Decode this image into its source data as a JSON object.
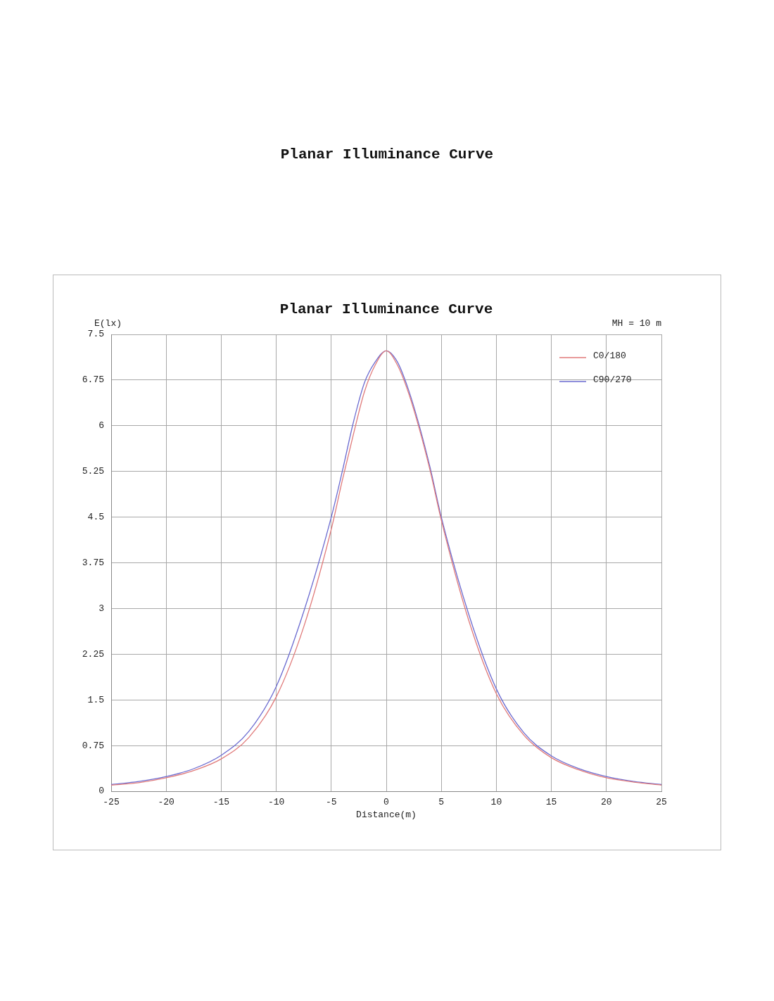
{
  "chart_data": {
    "type": "line",
    "title": "Planar Illuminance Curve",
    "xlabel": "Distance(m)",
    "ylabel": "E(lx)",
    "annotations": [
      "MH = 10 m"
    ],
    "x": [
      -25,
      -22.5,
      -20,
      -17.5,
      -15,
      -12.5,
      -10,
      -7.5,
      -5,
      -4,
      -3,
      -2,
      -1,
      0,
      1,
      2,
      3,
      4,
      5,
      7.5,
      10,
      12.5,
      15,
      17.5,
      20,
      22.5,
      25
    ],
    "series": [
      {
        "name": "C0/180",
        "color": "#e07a7a",
        "values": [
          0.1,
          0.14,
          0.22,
          0.34,
          0.53,
          0.88,
          1.55,
          2.7,
          4.3,
          5.1,
          5.85,
          6.55,
          7.0,
          7.23,
          7.0,
          6.55,
          5.95,
          5.25,
          4.45,
          2.8,
          1.6,
          0.92,
          0.55,
          0.35,
          0.22,
          0.15,
          0.1
        ]
      },
      {
        "name": "C90/270",
        "color": "#6b6bd0",
        "values": [
          0.11,
          0.16,
          0.24,
          0.37,
          0.59,
          0.98,
          1.72,
          2.95,
          4.5,
          5.25,
          6.05,
          6.7,
          7.05,
          7.23,
          7.05,
          6.6,
          6.0,
          5.3,
          4.5,
          2.9,
          1.68,
          0.96,
          0.58,
          0.37,
          0.24,
          0.16,
          0.11
        ]
      }
    ],
    "xlim": [
      -25,
      25
    ],
    "xticks": [
      -25,
      -20,
      -15,
      -10,
      -5,
      0,
      5,
      10,
      15,
      20,
      25
    ],
    "ylim": [
      0,
      7.5
    ],
    "yticks": [
      0,
      0.75,
      1.5,
      2.25,
      3,
      3.75,
      4.5,
      5.25,
      6,
      6.75,
      7.5
    ],
    "grid": true,
    "legend": "top right",
    "marker": "none",
    "line_style": "solid"
  }
}
